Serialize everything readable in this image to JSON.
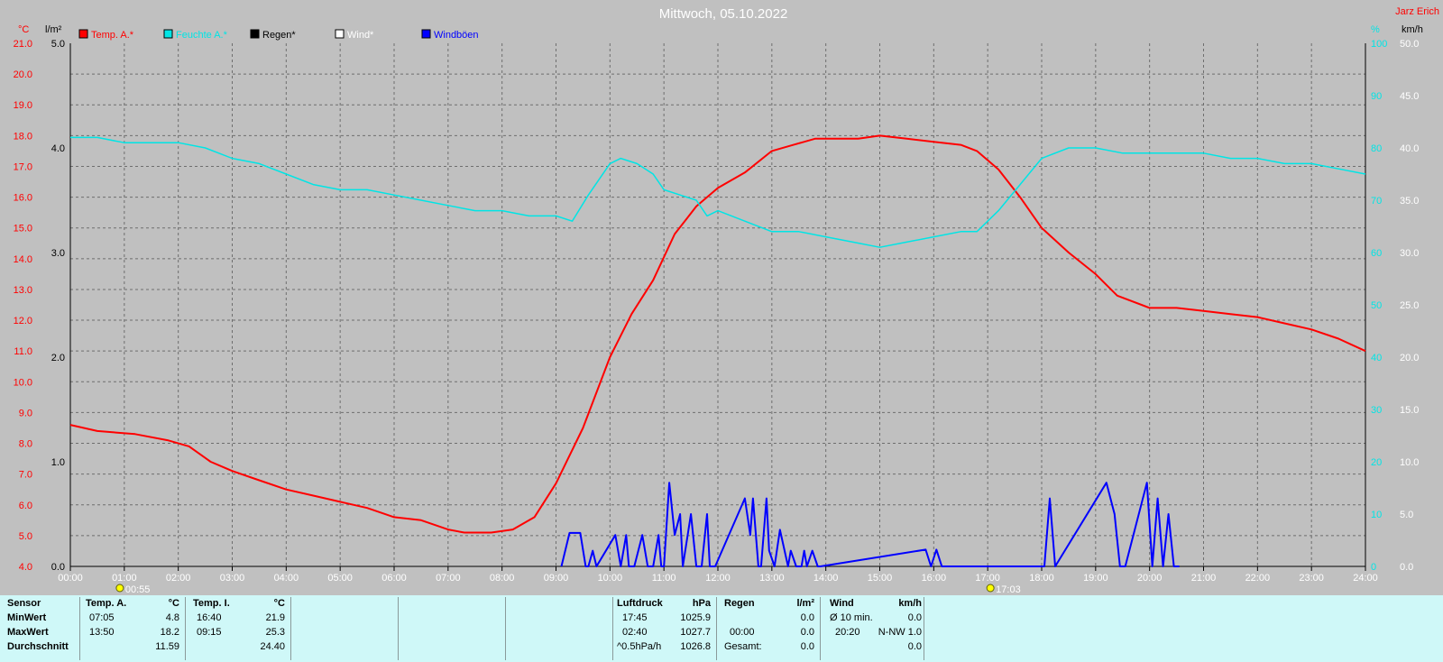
{
  "chart_data": {
    "type": "line",
    "title": "Mittwoch, 05.10.2022",
    "author": "Jarz Erich",
    "legend": [
      {
        "name": "Temp. A.*",
        "color": "#ff0000"
      },
      {
        "name": "Feuchte A.*",
        "color": "#00e5e5"
      },
      {
        "name": "Regen*",
        "color": "#000000"
      },
      {
        "name": "Wind*",
        "color": "#ffffff"
      },
      {
        "name": "Windböen",
        "color": "#0000ff"
      }
    ],
    "axes": {
      "temp": {
        "unit": "°C",
        "min": 4,
        "max": 21,
        "ticks": [
          "21.0",
          "20.0",
          "19.0",
          "18.0",
          "17.0",
          "16.0",
          "15.0",
          "14.0",
          "13.0",
          "12.0",
          "11.0",
          "10.0",
          "9.0",
          "8.0",
          "7.0",
          "6.0",
          "5.0",
          "4.0"
        ]
      },
      "rain": {
        "unit": "l/m²",
        "min": 0,
        "max": 5,
        "ticks": [
          "5.0",
          "4.0",
          "3.0",
          "2.0",
          "1.0",
          "0.0"
        ]
      },
      "humidity": {
        "unit": "%",
        "min": 0,
        "max": 100,
        "ticks": [
          "100",
          "90",
          "80",
          "70",
          "60",
          "50",
          "40",
          "30",
          "20",
          "10",
          "0"
        ]
      },
      "wind": {
        "unit": "km/h",
        "min": 0,
        "max": 50,
        "ticks": [
          "50.0",
          "45.0",
          "40.0",
          "35.0",
          "30.0",
          "25.0",
          "20.0",
          "15.0",
          "10.0",
          "5.0",
          "0.0"
        ]
      },
      "x": {
        "min": 0,
        "max": 24,
        "ticks": [
          "00:00",
          "01:00",
          "02:00",
          "03:00",
          "04:00",
          "05:00",
          "06:00",
          "07:00",
          "08:00",
          "09:00",
          "10:00",
          "11:00",
          "12:00",
          "13:00",
          "14:00",
          "15:00",
          "16:00",
          "17:00",
          "18:00",
          "19:00",
          "20:00",
          "21:00",
          "22:00",
          "23:00",
          "24:00"
        ]
      }
    },
    "grid": true,
    "sun_events": [
      {
        "label": "00:55",
        "x": 0.917
      },
      {
        "label": "17:03",
        "x": 17.05
      }
    ],
    "series": [
      {
        "name": "Temp. A.*",
        "axis": "temp",
        "color": "#ff0000",
        "x": [
          0,
          0.5,
          1.2,
          1.8,
          2.2,
          2.6,
          3.0,
          3.5,
          4.0,
          4.5,
          5.0,
          5.5,
          6.0,
          6.5,
          7.0,
          7.3,
          7.8,
          8.2,
          8.6,
          9.0,
          9.5,
          10.0,
          10.4,
          10.8,
          11.2,
          11.6,
          12.0,
          12.5,
          13.0,
          13.4,
          13.8,
          14.2,
          14.6,
          15.0,
          15.5,
          16.0,
          16.5,
          16.8,
          17.2,
          17.6,
          18.0,
          18.5,
          19.0,
          19.4,
          20.0,
          20.5,
          21.0,
          21.5,
          22.0,
          22.5,
          23.0,
          23.5,
          24.0
        ],
        "values": [
          8.6,
          8.4,
          8.3,
          8.1,
          7.9,
          7.4,
          7.1,
          6.8,
          6.5,
          6.3,
          6.1,
          5.9,
          5.6,
          5.5,
          5.2,
          5.1,
          5.1,
          5.2,
          5.6,
          6.7,
          8.5,
          10.8,
          12.2,
          13.3,
          14.8,
          15.7,
          16.3,
          16.8,
          17.5,
          17.7,
          17.9,
          17.9,
          17.9,
          18.0,
          17.9,
          17.8,
          17.7,
          17.5,
          16.9,
          16.0,
          15.0,
          14.2,
          13.5,
          12.8,
          12.4,
          12.4,
          12.3,
          12.2,
          12.1,
          11.9,
          11.7,
          11.4,
          11.0
        ]
      },
      {
        "name": "Feuchte A.*",
        "axis": "humidity",
        "color": "#00e5e5",
        "x": [
          0,
          0.5,
          1.0,
          1.5,
          2.0,
          2.5,
          3.0,
          3.5,
          4.0,
          4.5,
          5.0,
          5.5,
          6.0,
          6.5,
          7.0,
          7.5,
          8.0,
          8.5,
          9.0,
          9.3,
          9.6,
          10.0,
          10.2,
          10.5,
          10.8,
          11.0,
          11.3,
          11.6,
          11.8,
          12.0,
          12.5,
          13.0,
          13.5,
          14.0,
          14.5,
          15.0,
          15.5,
          16.0,
          16.5,
          16.8,
          17.2,
          17.6,
          18.0,
          18.5,
          19.0,
          19.5,
          20.0,
          20.5,
          21.0,
          21.5,
          22.0,
          22.5,
          23.0,
          23.5,
          24.0
        ],
        "values": [
          82,
          82,
          81,
          81,
          81,
          80,
          78,
          77,
          75,
          73,
          72,
          72,
          71,
          70,
          69,
          68,
          68,
          67,
          67,
          66,
          71,
          77,
          78,
          77,
          75,
          72,
          71,
          70,
          67,
          68,
          66,
          64,
          64,
          63,
          62,
          61,
          62,
          63,
          64,
          64,
          68,
          73,
          78,
          80,
          80,
          79,
          79,
          79,
          79,
          78,
          78,
          77,
          77,
          76,
          75
        ]
      },
      {
        "name": "Windböen",
        "axis": "wind",
        "color": "#0000ff",
        "x": [
          9.1,
          9.25,
          9.45,
          9.55,
          9.6,
          9.68,
          9.75,
          10.1,
          10.2,
          10.3,
          10.35,
          10.45,
          10.6,
          10.7,
          10.8,
          10.9,
          10.95,
          11.0,
          11.1,
          11.2,
          11.3,
          11.35,
          11.5,
          11.6,
          11.7,
          11.8,
          11.85,
          11.95,
          12.5,
          12.6,
          12.65,
          12.75,
          12.8,
          12.9,
          12.95,
          13.05,
          13.15,
          13.3,
          13.35,
          13.45,
          13.55,
          13.6,
          13.65,
          13.75,
          13.85,
          13.9,
          15.85,
          15.95,
          16.05,
          16.15,
          18.05,
          18.15,
          18.25,
          19.2,
          19.35,
          19.45,
          19.55,
          19.95,
          20.05,
          20.15,
          20.25,
          20.35,
          20.45,
          20.55
        ],
        "values": [
          0,
          3.2,
          3.2,
          0,
          0,
          1.5,
          0,
          3.0,
          0,
          3.0,
          0,
          0,
          3.0,
          0,
          0,
          3.0,
          0,
          0,
          8.0,
          3.0,
          5.0,
          0,
          5.0,
          0,
          0,
          5.0,
          0,
          0,
          6.5,
          3.0,
          6.5,
          0,
          0,
          6.5,
          1.5,
          0,
          3.5,
          0,
          1.5,
          0,
          0,
          1.5,
          0,
          1.5,
          0,
          0,
          1.6,
          0,
          1.6,
          0,
          0,
          6.5,
          0,
          8.0,
          5.0,
          0,
          0,
          8.0,
          0,
          6.5,
          0,
          5.0,
          0,
          0
        ]
      }
    ]
  },
  "footer": {
    "sensor": {
      "title": "Sensor",
      "rows": [
        "MinWert",
        "MaxWert",
        "Durchschnitt"
      ]
    },
    "temp_a": {
      "title": "Temp. A.",
      "unit": "°C",
      "min_time": "07:05",
      "min_val": "4.8",
      "max_time": "13:50",
      "max_val": "18.2",
      "avg": "11.59"
    },
    "temp_i": {
      "title": "Temp. I.",
      "unit": "°C",
      "min_time": "16:40",
      "min_val": "21.9",
      "max_time": "09:15",
      "max_val": "25.3",
      "avg": "24.40"
    },
    "pressure": {
      "title": "Luftdruck",
      "unit": "hPa",
      "min_time": "17:45",
      "min_val": "1025.9",
      "max_time": "02:40",
      "max_val": "1027.7",
      "trend_label": "^0.5hPa/h",
      "trend_val": "1026.8"
    },
    "rain": {
      "title": "Regen",
      "unit": "l/m²",
      "row2_time": "00:00",
      "row2_val": "0.0",
      "total_label": "Gesamt:",
      "total_val": "0.0",
      "row1_val": "0.0"
    },
    "wind": {
      "title": "Wind",
      "unit": "km/h",
      "avg_label": "Ø 10 min.",
      "avg_val": "0.0",
      "max_time": "20:20",
      "max_dir": "N-NW 1.0",
      "row3_val": "0.0"
    }
  }
}
